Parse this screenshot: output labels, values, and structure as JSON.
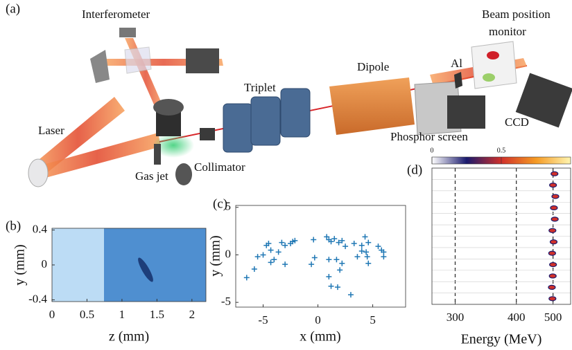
{
  "diagram": {
    "label": "(a)",
    "interferometer": "Interferometer",
    "laser": "Laser",
    "gas_jet": "Gas jet",
    "collimator": "Collimator",
    "triplet": "Triplet",
    "dipole": "Dipole",
    "al": "Al",
    "bpm": [
      "Beam position",
      "monitor"
    ],
    "phosphor": "Phosphor screen",
    "ccd": "CCD"
  },
  "chart_data": [
    {
      "type": "image",
      "label": "(b)",
      "xlabel": "z (mm)",
      "ylabel": "y (mm)",
      "xlim": [
        0,
        2.2
      ],
      "ylim": [
        -0.42,
        0.42
      ],
      "xticks": [
        0,
        0.5,
        1,
        1.5,
        2
      ],
      "yticks": [
        -0.4,
        0,
        0.4
      ]
    },
    {
      "type": "scatter",
      "label": "(c)",
      "xlabel": "x (mm)",
      "ylabel": "y (mm)",
      "xlim": [
        -7.5,
        8
      ],
      "ylim": [
        -5.5,
        5.2
      ],
      "xticks": [
        -5,
        0,
        5
      ],
      "yticks": [
        -5,
        0,
        5
      ],
      "color": "#1f77b4",
      "x": [
        -6.5,
        -5.8,
        -5.5,
        -5,
        -4.7,
        -4.5,
        -4.3,
        -4,
        -3.6,
        -3.3,
        -3,
        -3,
        -2.5,
        -2.3,
        -2.1,
        -4.3,
        -0.4,
        -0.6,
        -0.3,
        0.8,
        1,
        1.2,
        1.5,
        1.9,
        2.2,
        1,
        1,
        1.2,
        1.8,
        2,
        1.7,
        2.5,
        3,
        3.3,
        3.6,
        4,
        4.3,
        4.4,
        4.5,
        4.6,
        4.6,
        5.5,
        5.8,
        6,
        6,
        2.2,
        4
      ],
      "y": [
        -2.4,
        -1.5,
        -0.2,
        0,
        1,
        1.2,
        0.5,
        -0.5,
        0.3,
        1.3,
        -1,
        1,
        1.2,
        1.4,
        1.5,
        -0.8,
        1.6,
        -1,
        -0.3,
        1.9,
        1.6,
        1.4,
        1.7,
        1.3,
        1.5,
        -0.5,
        -2.3,
        -3.3,
        -3.4,
        -1.6,
        -0.5,
        0.9,
        -4.2,
        1.2,
        -0.2,
        1,
        1.9,
        0.3,
        -0.2,
        -0.9,
        1.3,
        0.9,
        0.5,
        -0.2,
        0.3,
        -0.9,
        0.4
      ]
    },
    {
      "type": "waterfall",
      "label": "(d)",
      "xlabel": "Energy (MeV)",
      "scale": "reciprocal",
      "xlim": [
        274,
        568
      ],
      "xticks": [
        300,
        400,
        500
      ],
      "colormap": [
        "#ffffff",
        "#1a1a6e",
        "#d0302a",
        "#f59a23",
        "#fff5b0"
      ],
      "clim": [
        0,
        1
      ],
      "colorbar_ticks": [
        0,
        0.5
      ],
      "values": [
        505,
        500,
        508,
        503,
        506,
        498,
        502,
        497,
        500,
        499,
        496,
        498
      ]
    }
  ]
}
